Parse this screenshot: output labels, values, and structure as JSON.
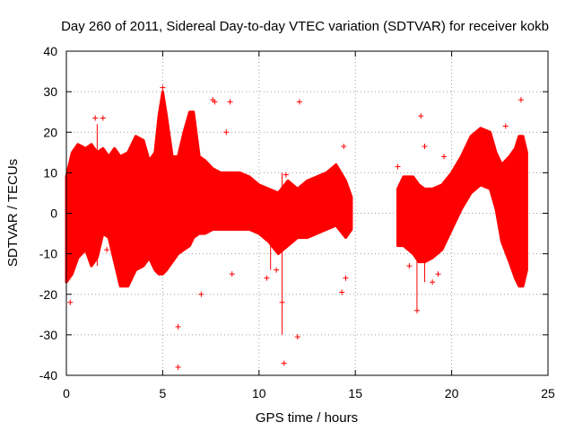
{
  "chart_data": {
    "type": "scatter",
    "title": "Day 260 of 2011, Sidereal Day-to-day VTEC variation (SDTVAR) for receiver kokb",
    "xlabel": "GPS time / hours",
    "ylabel": "SDTVAR / TECUs",
    "xlim": [
      0,
      25
    ],
    "ylim": [
      -40,
      40
    ],
    "x_ticks": [
      0,
      5,
      10,
      15,
      20,
      25
    ],
    "y_ticks": [
      -40,
      -30,
      -20,
      -10,
      0,
      10,
      20,
      30,
      40
    ],
    "x_tick_labels": [
      "0",
      "5",
      "10",
      "15",
      "20",
      "25"
    ],
    "y_tick_labels": [
      "-40",
      "-30",
      "-20",
      "-10",
      "0",
      "10",
      "20",
      "30",
      "40"
    ],
    "grid": true,
    "marker": "+",
    "color": "#ff0000",
    "series": [
      {
        "name": "SDTVAR",
        "envelope": {
          "x": [
            0.0,
            0.3,
            0.6,
            1.0,
            1.3,
            1.6,
            1.9,
            2.2,
            2.5,
            2.8,
            3.2,
            3.6,
            4.0,
            4.3,
            4.6,
            4.8,
            5.0,
            5.2,
            5.5,
            5.8,
            6.1,
            6.4,
            6.6,
            6.9,
            7.2,
            7.6,
            8.0,
            8.5,
            9.0,
            9.5,
            10.0,
            10.5,
            11.0,
            11.5,
            12.0,
            12.5,
            13.0,
            13.5,
            14.0,
            14.5,
            14.8
          ],
          "upper": [
            9,
            15,
            17,
            16,
            17,
            15,
            16,
            14,
            16,
            14,
            15,
            19,
            18,
            13,
            15,
            24,
            30,
            24,
            14,
            14,
            20,
            25,
            25,
            14,
            13,
            11,
            10,
            10,
            10,
            9,
            7,
            6,
            5,
            8,
            6,
            8,
            9,
            10,
            12,
            8,
            4
          ],
          "lower": [
            -17,
            -15,
            -11,
            -9,
            -13,
            -11,
            -5,
            -6,
            -12,
            -18,
            -18,
            -14,
            -13,
            -11,
            -14,
            -15,
            -15,
            -14,
            -12,
            -10,
            -9,
            -8,
            -6,
            -5,
            -5,
            -4,
            -4,
            -4,
            -4,
            -4,
            -5,
            -7,
            -10,
            -8,
            -6,
            -6,
            -5,
            -4,
            -3,
            -6,
            -4
          ]
        },
        "envelope2": {
          "x": [
            17.2,
            17.5,
            18.0,
            18.3,
            18.6,
            19.0,
            19.5,
            20.0,
            20.5,
            21.0,
            21.5,
            22.0,
            22.3,
            22.6,
            23.0,
            23.3,
            23.5,
            23.7,
            23.9
          ],
          "upper": [
            6,
            9,
            9,
            7,
            6,
            6,
            7,
            10,
            14,
            19,
            21,
            20,
            15,
            12,
            14,
            16,
            19,
            19,
            15
          ],
          "lower": [
            -8,
            -8,
            -10,
            -12,
            -12,
            -11,
            -9,
            -4,
            1,
            5,
            7,
            6,
            1,
            -7,
            -12,
            -16,
            -18,
            -18,
            -14
          ]
        },
        "outliers": [
          {
            "x": 0.2,
            "y": -22
          },
          {
            "x": 1.5,
            "y": 23.5
          },
          {
            "x": 1.9,
            "y": 23.5
          },
          {
            "x": 1.6,
            "y": -10
          },
          {
            "x": 2.1,
            "y": -9
          },
          {
            "x": 5.0,
            "y": 31
          },
          {
            "x": 5.8,
            "y": -28
          },
          {
            "x": 5.8,
            "y": -38
          },
          {
            "x": 7.0,
            "y": -20
          },
          {
            "x": 7.6,
            "y": 28
          },
          {
            "x": 7.7,
            "y": 27.5
          },
          {
            "x": 8.5,
            "y": 27.5
          },
          {
            "x": 8.6,
            "y": -15
          },
          {
            "x": 10.4,
            "y": -16
          },
          {
            "x": 10.9,
            "y": -14
          },
          {
            "x": 11.2,
            "y": -22
          },
          {
            "x": 11.3,
            "y": -37
          },
          {
            "x": 11.4,
            "y": 9.5
          },
          {
            "x": 12.1,
            "y": 27.5
          },
          {
            "x": 12.0,
            "y": -30.5
          },
          {
            "x": 14.4,
            "y": 16.5
          },
          {
            "x": 14.3,
            "y": -19.5
          },
          {
            "x": 14.5,
            "y": -16
          },
          {
            "x": 17.2,
            "y": 11.5
          },
          {
            "x": 18.2,
            "y": -24
          },
          {
            "x": 18.4,
            "y": 24
          },
          {
            "x": 18.6,
            "y": 16.5
          },
          {
            "x": 19.0,
            "y": -17
          },
          {
            "x": 19.3,
            "y": -15
          },
          {
            "x": 19.6,
            "y": 14
          },
          {
            "x": 22.8,
            "y": 21.5
          },
          {
            "x": 23.6,
            "y": 28
          },
          {
            "x": 23.1,
            "y": -5
          },
          {
            "x": 17.8,
            "y": -13
          },
          {
            "x": 8.3,
            "y": 20
          }
        ],
        "spikes": [
          {
            "x": 1.6,
            "y1": -13,
            "y2": 22
          },
          {
            "x": 11.2,
            "y1": -30,
            "y2": 10
          },
          {
            "x": 18.2,
            "y1": -24,
            "y2": -10
          },
          {
            "x": 18.6,
            "y1": -17,
            "y2": -12
          },
          {
            "x": 10.6,
            "y1": -14,
            "y2": -6
          }
        ]
      }
    ]
  }
}
